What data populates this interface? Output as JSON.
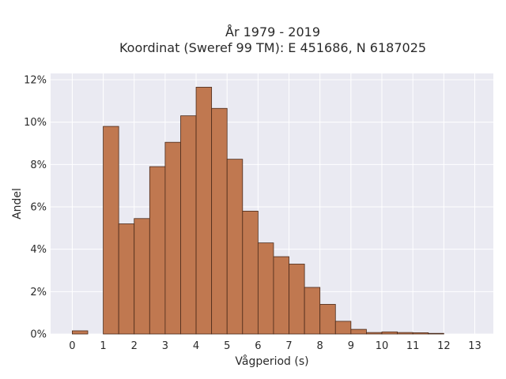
{
  "chart_data": {
    "type": "bar",
    "title_line1": "År 1979 - 2019",
    "title_line2": "Koordinat (Sweref 99 TM): E 451686, N 6187025",
    "xlabel": "Vågperiod (s)",
    "ylabel": "Andel",
    "xlim": [
      -0.7,
      13.6
    ],
    "ylim": [
      0,
      12.3
    ],
    "xticks": [
      "0",
      "1",
      "2",
      "3",
      "4",
      "5",
      "6",
      "7",
      "8",
      "9",
      "10",
      "11",
      "12",
      "13"
    ],
    "yticks": [
      "0%",
      "2%",
      "4%",
      "6%",
      "8%",
      "10%",
      "12%"
    ],
    "bin_width": 0.5,
    "bin_starts": [
      0,
      0.5,
      1,
      1.5,
      2,
      2.5,
      3,
      3.5,
      4,
      4.5,
      5,
      5.5,
      6,
      6.5,
      7,
      7.5,
      8,
      8.5,
      9,
      9.5,
      10,
      10.5,
      11,
      11.5,
      12,
      12.5
    ],
    "values": [
      0.15,
      0,
      9.8,
      5.2,
      5.45,
      7.9,
      9.05,
      10.3,
      11.65,
      10.65,
      8.25,
      5.8,
      4.3,
      3.65,
      3.3,
      2.2,
      1.4,
      0.6,
      0.22,
      0.07,
      0.1,
      0.07,
      0.06,
      0.03,
      0,
      0
    ],
    "grid": true,
    "colors": {
      "bar": "#c07850",
      "bar_edge": "#4a2a1a",
      "plot_bg": "#eaeaf2",
      "grid": "#ffffff"
    }
  }
}
